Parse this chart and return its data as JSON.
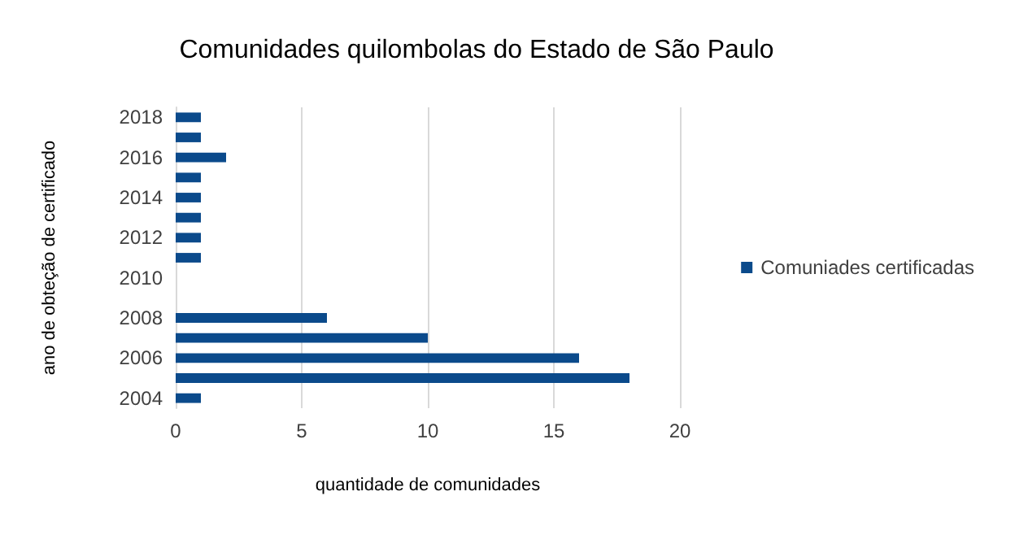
{
  "chart_data": {
    "type": "bar",
    "orientation": "horizontal",
    "title": "Comunidades quilombolas do Estado de São Paulo",
    "xlabel": "quantidade de comunidades",
    "ylabel": "ano de obteção de certificado",
    "categories": [
      "2018",
      null,
      "2016",
      null,
      "2014",
      null,
      "2012",
      null,
      "2010",
      null,
      "2008",
      null,
      "2006",
      null,
      "2004"
    ],
    "series": [
      {
        "name": "Comuniades certificadas",
        "color": "#0b4a8b",
        "values": [
          1,
          1,
          2,
          1,
          1,
          1,
          1,
          1,
          0,
          0,
          6,
          10,
          16,
          18,
          1
        ]
      }
    ],
    "xlim": [
      0,
      20
    ],
    "xticks": [
      0,
      5,
      10,
      15,
      20
    ],
    "grid": "x",
    "legend": "right"
  }
}
